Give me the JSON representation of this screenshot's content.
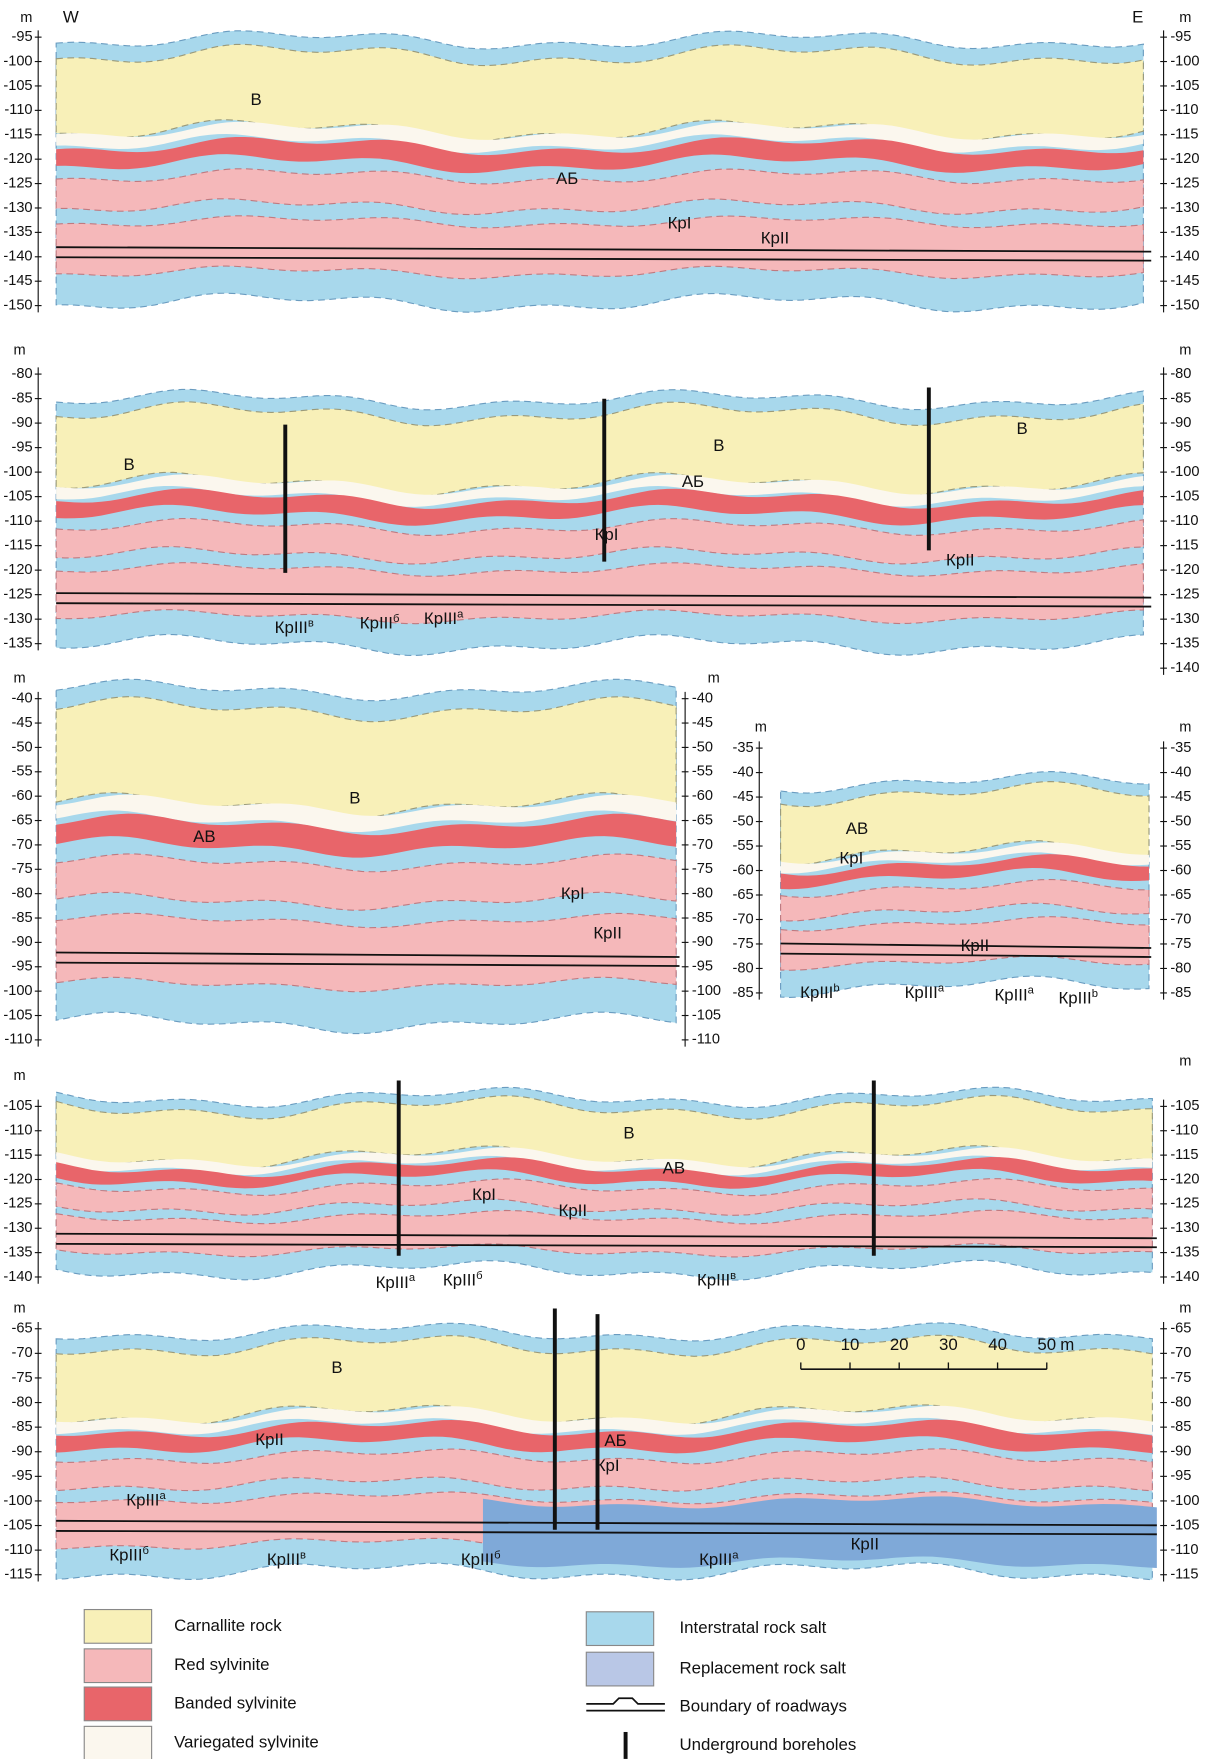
{
  "panels": [
    {
      "unit": "m",
      "left_label": "W",
      "right_label": "E",
      "yticks": [
        -95,
        -100,
        -105,
        -110,
        -115,
        -120,
        -125,
        -130,
        -135,
        -140,
        -145,
        -150
      ],
      "labels": [
        {
          "text": "В"
        },
        {
          "text": "АБ"
        },
        {
          "text": "КрI"
        },
        {
          "text": "КрII"
        }
      ]
    },
    {
      "unit": "m",
      "yticks": [
        -80,
        -85,
        -90,
        -95,
        -100,
        -105,
        -110,
        -115,
        -120,
        -125,
        -130,
        -135
      ],
      "right_yticks": [
        -80,
        -85,
        -90,
        -95,
        -100,
        -105,
        -110,
        -115,
        -120,
        -125,
        -130,
        -135,
        -140
      ],
      "labels": [
        {
          "text": "В"
        },
        {
          "text": "В"
        },
        {
          "text": "В"
        },
        {
          "text": "АБ"
        },
        {
          "text": "КрI"
        },
        {
          "text": "КрII"
        },
        {
          "text": "КрIII",
          "sup": "в"
        },
        {
          "text": "КрIII",
          "sup": "б"
        },
        {
          "text": "КрIII",
          "sup": "а"
        }
      ]
    },
    {
      "unit": "m",
      "yticks": [
        -40,
        -45,
        -50,
        -55,
        -60,
        -65,
        -70,
        -75,
        -80,
        -85,
        -90,
        -95,
        -100,
        -105,
        -110
      ],
      "labels": [
        {
          "text": "В"
        },
        {
          "text": "АВ"
        },
        {
          "text": "КрI"
        },
        {
          "text": "КрII"
        }
      ]
    },
    {
      "unit": "m",
      "yticks": [
        -35,
        -40,
        -45,
        -50,
        -55,
        -60,
        -65,
        -70,
        -75,
        -80,
        -85
      ],
      "labels": [
        {
          "text": "АВ"
        },
        {
          "text": "КрI"
        },
        {
          "text": "КрII"
        },
        {
          "text": "КрIII",
          "sup": "b"
        },
        {
          "text": "КрIII",
          "sup": "a"
        },
        {
          "text": "КрIII",
          "sup": "a"
        },
        {
          "text": "КрIII",
          "sup": "b"
        }
      ]
    },
    {
      "unit": "m",
      "yticks": [
        -105,
        -110,
        -115,
        -120,
        -125,
        -130,
        -135,
        -140
      ],
      "labels": [
        {
          "text": "В"
        },
        {
          "text": "АВ"
        },
        {
          "text": "КрI"
        },
        {
          "text": "КрII"
        },
        {
          "text": "КрIII",
          "sup": "а"
        },
        {
          "text": "КрIII",
          "sup": "б"
        },
        {
          "text": "КрIII",
          "sup": "в"
        }
      ]
    },
    {
      "unit": "m",
      "yticks": [
        -65,
        -70,
        -75,
        -80,
        -85,
        -90,
        -95,
        -100,
        -105,
        -110,
        -115
      ],
      "labels": [
        {
          "text": "В"
        },
        {
          "text": "КрII"
        },
        {
          "text": "АБ"
        },
        {
          "text": "КрI"
        },
        {
          "text": "КрII"
        },
        {
          "text": "КрIII",
          "sup": "а"
        },
        {
          "text": "КрIII",
          "sup": "б"
        },
        {
          "text": "КрIII",
          "sup": "в"
        },
        {
          "text": "КрIII",
          "sup": "б"
        },
        {
          "text": "КрIII",
          "sup": "а"
        }
      ]
    }
  ],
  "scale_bar": {
    "ticks": [
      0,
      10,
      20,
      30,
      40,
      50
    ],
    "unit": "m"
  },
  "legend": [
    {
      "label": "Carnallite rock"
    },
    {
      "label": "Red sylvinite"
    },
    {
      "label": "Banded sylvinite"
    },
    {
      "label": "Variegated sylvinite"
    },
    {
      "label": "Interstratal rock salt"
    },
    {
      "label": "Replacement rock salt"
    },
    {
      "label": "Boundary of roadways"
    },
    {
      "label": "Underground boreholes"
    }
  ]
}
